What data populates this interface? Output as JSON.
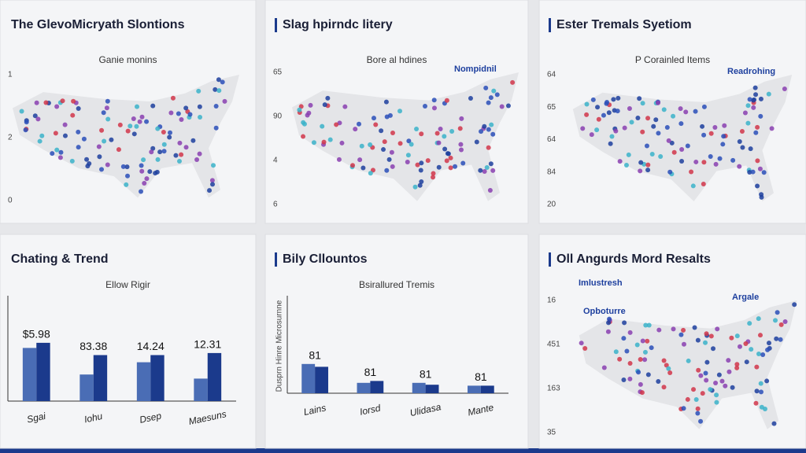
{
  "panels": [
    {
      "title": "The GlevoMicryath Slontions",
      "subtitle": "Ganie monins",
      "axis_labels": [
        "1",
        "2",
        "0"
      ]
    },
    {
      "title": "Slag hpirndc litery",
      "subtitle": "Bore al hdines",
      "legend": "Nompidnil",
      "axis_labels": [
        "65",
        "90",
        "4",
        "6"
      ]
    },
    {
      "title": "Ester Tremals Syetiom",
      "subtitle": "P Corainled Items",
      "legend": "Readrohing",
      "axis_labels": [
        "64",
        "65",
        "64",
        "84",
        "20"
      ]
    },
    {
      "title": "Chating & Trend",
      "subtitle": "Ellow Rigir",
      "chart": {
        "type": "bar",
        "categories": [
          "Sgai",
          "Iohu",
          "Dsep",
          "Maesuns"
        ],
        "group_labels": [
          "$5.98",
          "83.38",
          "14.24",
          "12.31"
        ],
        "ylim": [
          0,
          100
        ],
        "series": [
          {
            "color": "#4a6db5",
            "values": [
              52,
              26,
              38,
              22
            ]
          },
          {
            "color": "#1b3a8c",
            "values": [
              57,
              45,
              45,
              47
            ]
          }
        ]
      }
    },
    {
      "title": "Bily Cllountos",
      "subtitle": "Bsirallured Tremis",
      "chart": {
        "type": "bar",
        "ylabel": "Dusprn Hinre Microsurnne",
        "categories": [
          "Lains",
          "Iorsd",
          "Ulidasa",
          "Mante"
        ],
        "group_labels": [
          "81",
          "81",
          "81",
          "81"
        ],
        "ylim": [
          0,
          100
        ],
        "series": [
          {
            "color": "#4a6db5",
            "values": [
              31,
              11,
              11,
              8
            ]
          },
          {
            "color": "#1b3a8c",
            "values": [
              28,
              13,
              9,
              8
            ]
          }
        ]
      }
    },
    {
      "title": "Oll Angurds Mord Resalts",
      "annotations": [
        "Imlustresh",
        "Opboturre"
      ],
      "legend": "Argale",
      "axis_labels": [
        "16",
        "451",
        "163",
        "35"
      ]
    }
  ]
}
